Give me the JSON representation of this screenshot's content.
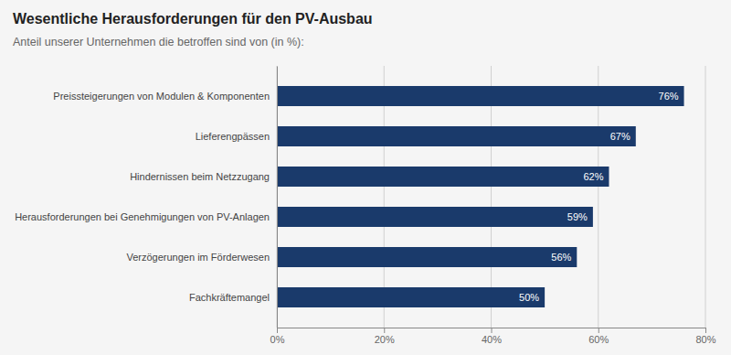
{
  "chart_data": {
    "type": "bar",
    "orientation": "horizontal",
    "title": "Wesentliche Herausforderungen für den PV-Ausbau",
    "subtitle": "Anteil unserer Unternehmen die betroffen sind von (in %):",
    "categories": [
      "Fachkräftemangel",
      "Verzögerungen im Förderwesen",
      "Herausforderungen bei Genehmigungen von PV-Anlagen",
      "Hindernissen beim Netzzugang",
      "Lieferengpässen",
      "Preissteigerungen von Modulen & Komponenten"
    ],
    "values": [
      50,
      56,
      59,
      62,
      67,
      76
    ],
    "value_labels": [
      "50%",
      "56%",
      "59%",
      "62%",
      "67%",
      "76%"
    ],
    "data_labels": true,
    "color": "#1a3a6b",
    "xlim": [
      0,
      80
    ],
    "xticks": [
      {
        "value": 0,
        "label": "0%"
      },
      {
        "value": 20,
        "label": "20%"
      },
      {
        "value": 40,
        "label": "40%"
      },
      {
        "value": 60,
        "label": "60%"
      },
      {
        "value": 80,
        "label": "80%"
      }
    ],
    "grid": true
  }
}
